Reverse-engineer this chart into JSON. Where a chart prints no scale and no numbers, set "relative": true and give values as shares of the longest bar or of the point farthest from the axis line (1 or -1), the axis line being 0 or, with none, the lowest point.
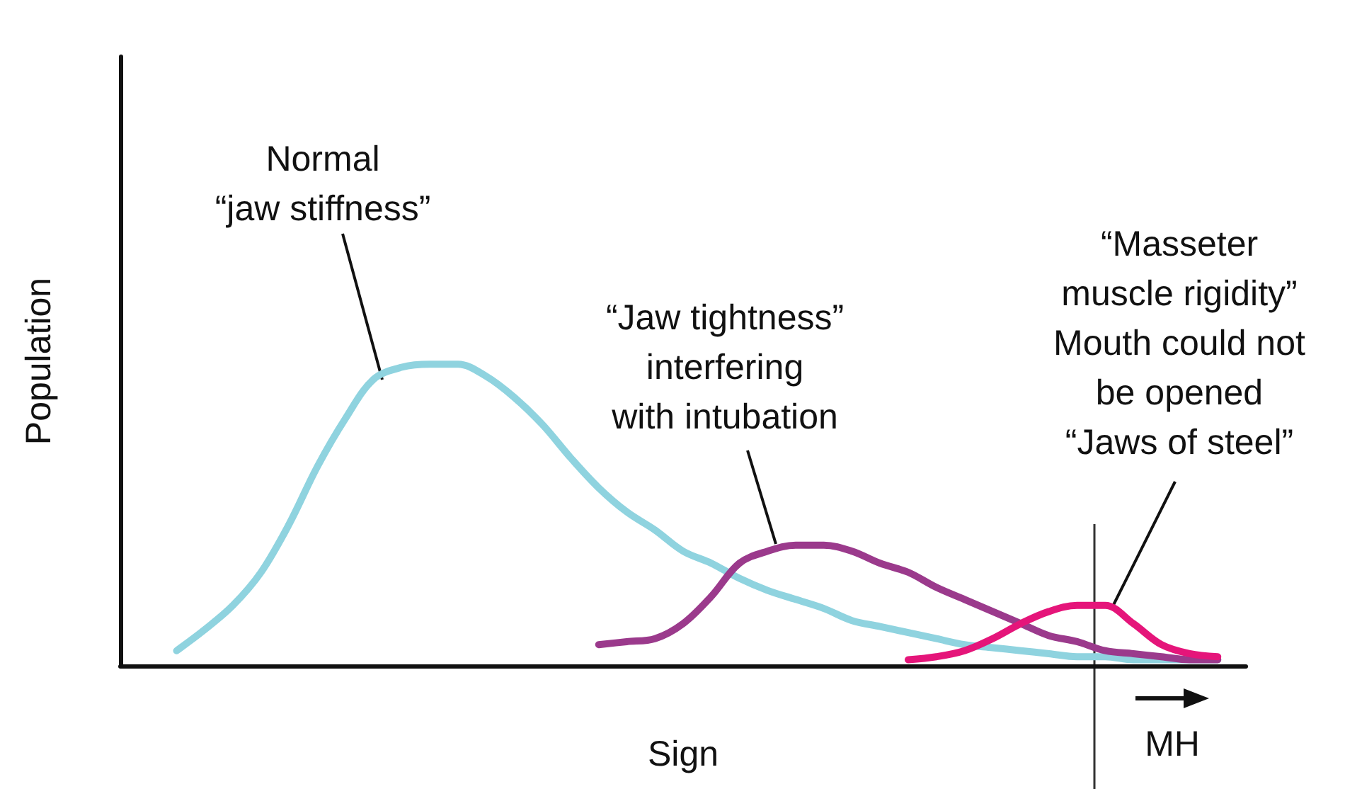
{
  "chart_data": {
    "type": "line",
    "relative": true,
    "xlabel": "Sign",
    "ylabel": "Population",
    "categories": [
      null,
      null,
      null,
      null,
      null,
      null,
      null,
      null,
      null,
      null,
      null,
      null,
      null,
      null,
      null,
      null,
      null,
      null,
      null,
      null,
      null,
      null,
      null,
      null,
      null,
      null,
      null,
      null,
      null,
      null,
      null,
      null,
      null,
      null,
      null,
      null,
      null,
      null,
      null,
      null,
      null
    ],
    "series": [
      {
        "color": "#8fd3df",
        "values": [
          null,
          null,
          0.05,
          0.12,
          0.2,
          0.31,
          0.47,
          0.66,
          0.82,
          0.95,
          0.99,
          1.0,
          1.0,
          0.96,
          0.89,
          0.8,
          0.69,
          0.59,
          0.51,
          0.45,
          0.38,
          0.34,
          0.29,
          0.25,
          0.22,
          0.19,
          0.15,
          0.13,
          0.11,
          0.09,
          0.07,
          0.06,
          0.05,
          0.04,
          0.03,
          0.03,
          0.02,
          0.02,
          0.02,
          0.02,
          null
        ]
      },
      {
        "color": "#9b3a8c",
        "values": [
          null,
          null,
          null,
          null,
          null,
          null,
          null,
          null,
          null,
          null,
          null,
          null,
          null,
          null,
          null,
          null,
          null,
          0.07,
          0.08,
          0.09,
          0.14,
          0.23,
          0.34,
          0.38,
          0.4,
          0.4,
          0.38,
          0.34,
          0.31,
          0.26,
          0.22,
          0.18,
          0.14,
          0.1,
          0.08,
          0.05,
          0.04,
          0.03,
          0.02,
          0.02,
          null
        ]
      },
      {
        "color": "#e5157a",
        "values": [
          null,
          null,
          null,
          null,
          null,
          null,
          null,
          null,
          null,
          null,
          null,
          null,
          null,
          null,
          null,
          null,
          null,
          null,
          null,
          null,
          null,
          null,
          null,
          null,
          null,
          null,
          null,
          null,
          0.02,
          0.03,
          0.05,
          0.09,
          0.14,
          0.18,
          0.2,
          0.2,
          0.14,
          0.07,
          0.04,
          0.03,
          null
        ]
      }
    ],
    "annotations": [
      "Normal\n“jaw stiffness”",
      "“Jaw tightness”\ninterfering\nwith intubation",
      "“Masseter\nmuscle rigidity”\nMouth could not\nbe opened\n“Jaws of steel”",
      "MH"
    ],
    "marker": "none",
    "grid": false
  }
}
